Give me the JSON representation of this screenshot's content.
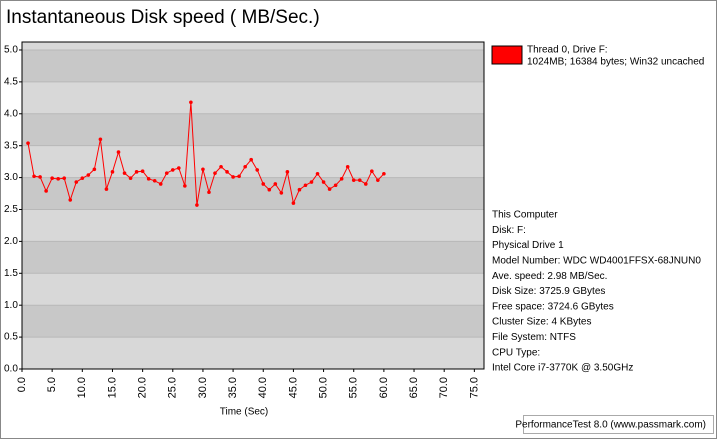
{
  "chart_data": {
    "type": "line",
    "title": "Instantaneous Disk speed ( MB/Sec.)",
    "x_label": "Time (Sec)",
    "x": [
      1,
      2,
      3,
      4,
      5,
      6,
      7,
      8,
      9,
      10,
      11,
      12,
      13,
      14,
      15,
      16,
      17,
      18,
      19,
      20,
      21,
      22,
      23,
      24,
      25,
      26,
      27,
      28,
      29,
      30,
      31,
      32,
      33,
      34,
      35,
      36,
      37,
      38,
      39,
      40,
      41,
      42,
      43,
      44,
      45,
      46,
      47,
      48,
      49,
      50,
      51,
      52,
      53,
      54,
      55,
      56,
      57,
      58,
      59,
      60
    ],
    "series": [
      {
        "name": "Thread 0, Drive F:",
        "description": "1024MB; 16384 bytes; Win32 uncached",
        "color": "#ff0000",
        "values": [
          3.54,
          3.02,
          3.01,
          2.79,
          2.99,
          2.98,
          2.99,
          2.65,
          2.93,
          2.99,
          3.04,
          3.13,
          3.6,
          2.82,
          3.09,
          3.4,
          3.07,
          2.99,
          3.09,
          3.1,
          2.98,
          2.95,
          2.9,
          3.07,
          3.12,
          3.15,
          2.87,
          4.18,
          2.57,
          3.13,
          2.77,
          3.07,
          3.17,
          3.09,
          3.01,
          3.02,
          3.17,
          3.28,
          3.12,
          2.9,
          2.81,
          2.9,
          2.76,
          3.09,
          2.6,
          2.81,
          2.88,
          2.93,
          3.06,
          2.93,
          2.82,
          2.88,
          2.98,
          3.17,
          2.96,
          2.96,
          2.9,
          3.1,
          2.96,
          3.06
        ]
      }
    ],
    "xlim": [
      0,
      76.6
    ],
    "xticks": [
      {
        "value": 0,
        "label": "0.0"
      },
      {
        "value": 5,
        "label": "5.0"
      },
      {
        "value": 10,
        "label": "10.0"
      },
      {
        "value": 15,
        "label": "15.0"
      },
      {
        "value": 20,
        "label": "20.0"
      },
      {
        "value": 25,
        "label": "25.0"
      },
      {
        "value": 30,
        "label": "30.0"
      },
      {
        "value": 35,
        "label": "35.0"
      },
      {
        "value": 40,
        "label": "40.0"
      },
      {
        "value": 45,
        "label": "45.0"
      },
      {
        "value": 50,
        "label": "50.0"
      },
      {
        "value": 55,
        "label": "55.0"
      },
      {
        "value": 60,
        "label": "60.0"
      },
      {
        "value": 65,
        "label": "65.0"
      },
      {
        "value": 70,
        "label": "70.0"
      },
      {
        "value": 75,
        "label": "75.0"
      }
    ],
    "ylim": [
      0,
      5.125
    ],
    "yticks": [
      {
        "value": 0,
        "label": "0.0"
      },
      0.5,
      {
        "value": 1,
        "label": "1.0"
      },
      1.5,
      {
        "value": 2,
        "label": "2.0"
      },
      2.5,
      {
        "value": 3,
        "label": "3.0"
      },
      3.5,
      {
        "value": 4,
        "label": "4.0"
      },
      4.5,
      {
        "value": 5,
        "label": "5.0"
      }
    ],
    "info": [
      "This Computer",
      "Disk: F:",
      "Physical Drive 1",
      "Model Number: WDC WD4001FFSX-68JNUN0",
      "Ave. speed: 2.98 MB/Sec.",
      "Disk Size: 3725.9 GBytes",
      "Free space: 3724.6 GBytes",
      "Cluster Size: 4 KBytes",
      "File System: NTFS",
      "CPU Type:",
      "Intel Core i7-3770K @ 3.50GHz"
    ],
    "footer": "PerformanceTest 8.0 (www.passmark.com)"
  }
}
